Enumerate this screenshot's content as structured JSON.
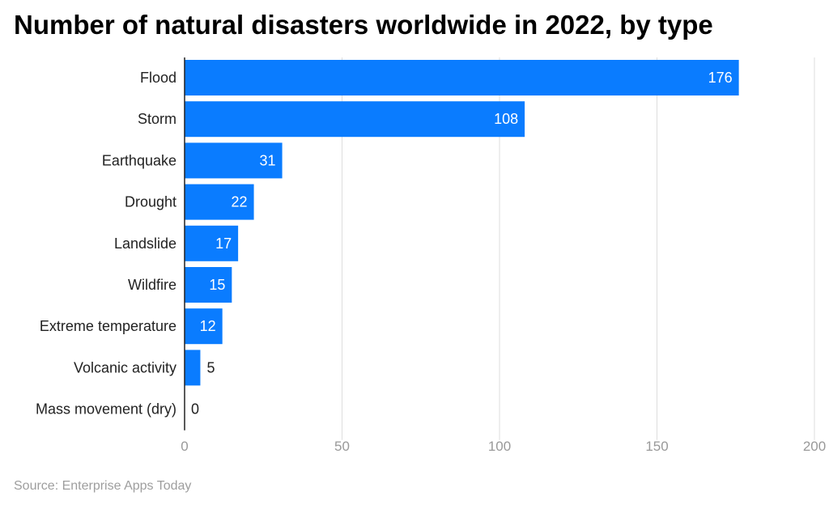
{
  "title": "Number of natural disasters worldwide in 2022, by type",
  "source": "Source: Enterprise Apps Today",
  "colors": {
    "bar": "#0a7cff",
    "grid": "#dddddd",
    "axis": "#222222",
    "tick": "#999999",
    "inside_label": "#ffffff",
    "outside_label": "#222222"
  },
  "chart_data": {
    "type": "bar",
    "orientation": "horizontal",
    "categories": [
      "Flood",
      "Storm",
      "Earthquake",
      "Drought",
      "Landslide",
      "Wildfire",
      "Extreme temperature",
      "Volcanic activity",
      "Mass movement (dry)"
    ],
    "values": [
      176,
      108,
      31,
      22,
      17,
      15,
      12,
      5,
      0
    ],
    "xlim": [
      0,
      200
    ],
    "xticks": [
      0,
      50,
      100,
      150,
      200
    ],
    "xlabel": "",
    "ylabel": "",
    "grid": true,
    "data_labels": true
  }
}
